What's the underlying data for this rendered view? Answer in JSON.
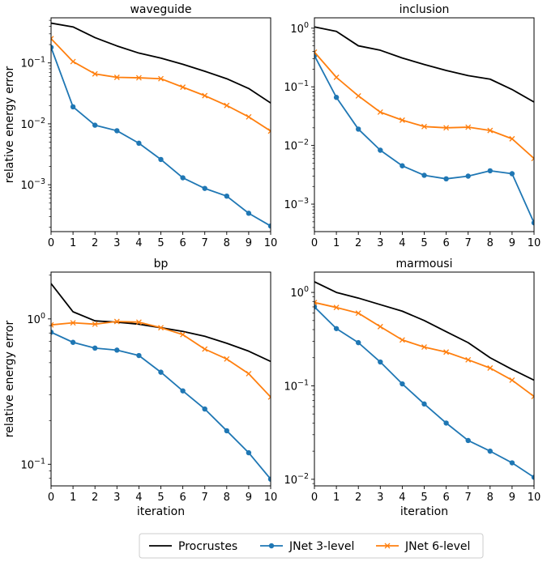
{
  "figure": {
    "legend": {
      "placement": "bottom-center",
      "entries": [
        "Procrustes",
        "JNet 3-level",
        "JNet 6-level"
      ]
    },
    "colors": {
      "procrustes": "#000000",
      "jnet3": "#1f77b4",
      "jnet6": "#ff7f0e"
    }
  },
  "chart_data": [
    {
      "type": "line",
      "title": "waveguide",
      "xlabel": "",
      "ylabel": "relative energy error",
      "yscale": "log",
      "x": [
        0,
        1,
        2,
        3,
        4,
        5,
        6,
        7,
        8,
        9,
        10
      ],
      "xlim": [
        0,
        10
      ],
      "ylim": [
        0.00017,
        0.55
      ],
      "x_ticks": [
        "0",
        "1",
        "2",
        "3",
        "4",
        "5",
        "6",
        "7",
        "8",
        "9",
        "10"
      ],
      "y_ticks": [
        {
          "value": 0.001,
          "base": "10",
          "exp": "−3"
        },
        {
          "value": 0.01,
          "base": "10",
          "exp": "−2"
        },
        {
          "value": 0.1,
          "base": "10",
          "exp": "−1"
        }
      ],
      "series": [
        {
          "name": "Procrustes",
          "marker": "none",
          "values": [
            0.45,
            0.39,
            0.26,
            0.19,
            0.145,
            0.12,
            0.095,
            0.073,
            0.055,
            0.038,
            0.022
          ]
        },
        {
          "name": "JNet 3-level",
          "marker": "circle",
          "values": [
            0.18,
            0.019,
            0.0095,
            0.0077,
            0.0048,
            0.0026,
            0.0013,
            0.00087,
            0.00065,
            0.00034,
            0.00021
          ]
        },
        {
          "name": "JNet 6-level",
          "marker": "x",
          "values": [
            0.25,
            0.105,
            0.066,
            0.058,
            0.057,
            0.055,
            0.04,
            0.029,
            0.02,
            0.013,
            0.0076
          ]
        }
      ]
    },
    {
      "type": "line",
      "title": "inclusion",
      "xlabel": "",
      "ylabel": "",
      "yscale": "log",
      "x": [
        0,
        1,
        2,
        3,
        4,
        5,
        6,
        7,
        8,
        9,
        10
      ],
      "xlim": [
        0,
        10
      ],
      "ylim": [
        0.00034,
        1.5
      ],
      "x_ticks": [
        "0",
        "1",
        "2",
        "3",
        "4",
        "5",
        "6",
        "7",
        "8",
        "9",
        "10"
      ],
      "y_ticks": [
        {
          "value": 0.001,
          "base": "10",
          "exp": "−3"
        },
        {
          "value": 0.01,
          "base": "10",
          "exp": "−2"
        },
        {
          "value": 0.1,
          "base": "10",
          "exp": "−1"
        },
        {
          "value": 1,
          "base": "10",
          "exp": "0"
        }
      ],
      "series": [
        {
          "name": "Procrustes",
          "marker": "none",
          "values": [
            1.05,
            0.88,
            0.5,
            0.42,
            0.31,
            0.24,
            0.19,
            0.155,
            0.135,
            0.09,
            0.055
          ]
        },
        {
          "name": "JNet 3-level",
          "marker": "circle",
          "values": [
            0.34,
            0.066,
            0.019,
            0.0083,
            0.0045,
            0.0031,
            0.0027,
            0.003,
            0.0037,
            0.0033,
            0.00048
          ]
        },
        {
          "name": "JNet 6-level",
          "marker": "x",
          "values": [
            0.39,
            0.145,
            0.07,
            0.037,
            0.027,
            0.021,
            0.02,
            0.0205,
            0.018,
            0.013,
            0.006
          ]
        }
      ]
    },
    {
      "type": "line",
      "title": "bp",
      "xlabel": "iteration",
      "ylabel": "relative energy error",
      "yscale": "log",
      "x": [
        0,
        1,
        2,
        3,
        4,
        5,
        6,
        7,
        8,
        9,
        10
      ],
      "xlim": [
        0,
        10
      ],
      "ylim": [
        0.071,
        2.1
      ],
      "x_ticks": [
        "0",
        "1",
        "2",
        "3",
        "4",
        "5",
        "6",
        "7",
        "8",
        "9",
        "10"
      ],
      "y_ticks": [
        {
          "value": 0.1,
          "base": "10",
          "exp": "−1"
        },
        {
          "value": 1,
          "base": "10",
          "exp": "0"
        }
      ],
      "series": [
        {
          "name": "Procrustes",
          "marker": "none",
          "values": [
            1.75,
            1.12,
            0.97,
            0.95,
            0.92,
            0.87,
            0.82,
            0.76,
            0.68,
            0.6,
            0.51
          ]
        },
        {
          "name": "JNet 3-level",
          "marker": "circle",
          "values": [
            0.81,
            0.69,
            0.63,
            0.61,
            0.56,
            0.43,
            0.32,
            0.24,
            0.17,
            0.12,
            0.079
          ]
        },
        {
          "name": "JNet 6-level",
          "marker": "x",
          "values": [
            0.91,
            0.94,
            0.92,
            0.96,
            0.95,
            0.87,
            0.78,
            0.62,
            0.53,
            0.42,
            0.29
          ]
        }
      ]
    },
    {
      "type": "line",
      "title": "marmousi",
      "xlabel": "iteration",
      "ylabel": "",
      "yscale": "log",
      "x": [
        0,
        1,
        2,
        3,
        4,
        5,
        6,
        7,
        8,
        9,
        10
      ],
      "xlim": [
        0,
        10
      ],
      "ylim": [
        0.0085,
        1.65
      ],
      "x_ticks": [
        "0",
        "1",
        "2",
        "3",
        "4",
        "5",
        "6",
        "7",
        "8",
        "9",
        "10"
      ],
      "y_ticks": [
        {
          "value": 0.01,
          "base": "10",
          "exp": "−2"
        },
        {
          "value": 0.1,
          "base": "10",
          "exp": "−1"
        },
        {
          "value": 1,
          "base": "10",
          "exp": "0"
        }
      ],
      "series": [
        {
          "name": "Procrustes",
          "marker": "none",
          "values": [
            1.3,
            1.0,
            0.87,
            0.74,
            0.63,
            0.5,
            0.38,
            0.29,
            0.2,
            0.15,
            0.115
          ]
        },
        {
          "name": "JNet 3-level",
          "marker": "circle",
          "values": [
            0.7,
            0.41,
            0.29,
            0.18,
            0.105,
            0.064,
            0.04,
            0.026,
            0.02,
            0.015,
            0.0105
          ]
        },
        {
          "name": "JNet 6-level",
          "marker": "x",
          "values": [
            0.78,
            0.69,
            0.6,
            0.43,
            0.31,
            0.26,
            0.23,
            0.19,
            0.155,
            0.115,
            0.077
          ]
        }
      ]
    }
  ]
}
